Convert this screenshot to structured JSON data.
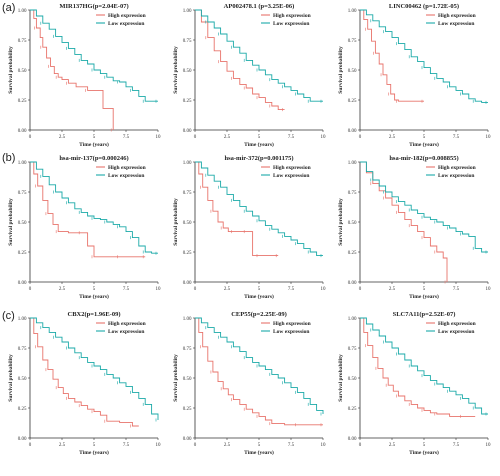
{
  "panel_letters": [
    "(a)",
    "(b)",
    "(c)"
  ],
  "colors": {
    "high": "#e8736b",
    "low": "#1aa9a8",
    "axis": "#333333"
  },
  "chart_data": [
    {
      "type": "line",
      "title": "MIR137HG(p=2.04E-07)",
      "xlabel": "Time  (years)",
      "ylabel": "Survival probability",
      "xlim": [
        0,
        10
      ],
      "ylim": [
        0,
        1
      ],
      "xticks": [
        "0",
        "2.5",
        "5",
        "7.5",
        "10"
      ],
      "yticks": [
        "0.00",
        "0.25",
        "0.50",
        "0.75",
        "1.00"
      ],
      "legend": "top-right",
      "grid": false,
      "series": [
        {
          "name": "High expression",
          "x": [
            0,
            0.3,
            0.5,
            0.8,
            1,
            1.3,
            1.6,
            1.9,
            2.2,
            2.5,
            3,
            3.6,
            4.5,
            5.7,
            6.5
          ],
          "y": [
            1,
            0.93,
            0.85,
            0.77,
            0.69,
            0.6,
            0.53,
            0.47,
            0.44,
            0.42,
            0.39,
            0.36,
            0.33,
            0.18,
            0
          ]
        },
        {
          "name": "Low expression",
          "x": [
            0,
            0.5,
            1,
            1.5,
            2,
            2.5,
            3,
            3.5,
            4,
            4.5,
            5,
            5.5,
            6,
            6.5,
            7,
            7.5,
            8,
            8.5,
            9,
            9.5,
            10
          ],
          "y": [
            1,
            0.95,
            0.89,
            0.84,
            0.78,
            0.73,
            0.68,
            0.63,
            0.58,
            0.55,
            0.5,
            0.47,
            0.44,
            0.41,
            0.4,
            0.36,
            0.33,
            0.28,
            0.24,
            0.24,
            0.24
          ]
        }
      ]
    },
    {
      "type": "line",
      "title": "AP002478.1 (p=3.25E-06)",
      "xlabel": "Time  (years)",
      "ylabel": "Survival probability",
      "xlim": [
        0,
        10
      ],
      "ylim": [
        0,
        1
      ],
      "xticks": [
        "0",
        "2.5",
        "5",
        "7.5",
        "10"
      ],
      "yticks": [
        "0.00",
        "0.25",
        "0.50",
        "0.75",
        "1.00"
      ],
      "legend": "top-right",
      "grid": false,
      "series": [
        {
          "name": "High expression",
          "x": [
            0,
            0.5,
            1,
            1.5,
            2,
            2.5,
            3,
            3.5,
            4,
            4.5,
            5,
            5.5,
            6,
            6.5,
            7
          ],
          "y": [
            1,
            0.9,
            0.77,
            0.66,
            0.57,
            0.49,
            0.43,
            0.38,
            0.35,
            0.3,
            0.27,
            0.23,
            0.2,
            0.17,
            0.17
          ]
        },
        {
          "name": "Low expression",
          "x": [
            0,
            0.5,
            1,
            1.5,
            2,
            2.5,
            3,
            3.5,
            4,
            4.5,
            5,
            5.5,
            6,
            6.5,
            7,
            7.5,
            8,
            8.5,
            9,
            9.5,
            10
          ],
          "y": [
            1,
            0.95,
            0.9,
            0.85,
            0.8,
            0.74,
            0.69,
            0.64,
            0.58,
            0.54,
            0.5,
            0.46,
            0.42,
            0.39,
            0.36,
            0.33,
            0.3,
            0.27,
            0.24,
            0.24,
            0.24
          ]
        }
      ]
    },
    {
      "type": "line",
      "title": "LINC00462 (p=1.72E-05)",
      "xlabel": "Time  (years)",
      "ylabel": "Survival probability",
      "xlim": [
        0,
        10
      ],
      "ylim": [
        0,
        1
      ],
      "xticks": [
        "0",
        "2.5",
        "5",
        "7.5",
        "10"
      ],
      "yticks": [
        "0.00",
        "0.25",
        "0.50",
        "0.75",
        "1.00"
      ],
      "legend": "top-right",
      "grid": false,
      "series": [
        {
          "name": "High expression",
          "x": [
            0,
            0.3,
            0.6,
            0.9,
            1.2,
            1.5,
            1.8,
            2.1,
            2.4,
            2.7,
            3,
            4,
            5
          ],
          "y": [
            1,
            0.92,
            0.84,
            0.74,
            0.64,
            0.55,
            0.46,
            0.38,
            0.3,
            0.25,
            0.24,
            0.24,
            0.24
          ]
        },
        {
          "name": "Low expression",
          "x": [
            0,
            0.5,
            1,
            1.5,
            2,
            2.5,
            3,
            3.5,
            4,
            4.5,
            5,
            5.5,
            6,
            6.5,
            7,
            7.5,
            8,
            8.5,
            9,
            9.5,
            10
          ],
          "y": [
            1,
            0.96,
            0.91,
            0.86,
            0.82,
            0.77,
            0.72,
            0.67,
            0.61,
            0.57,
            0.52,
            0.47,
            0.43,
            0.4,
            0.36,
            0.33,
            0.3,
            0.26,
            0.24,
            0.23,
            0.23
          ]
        }
      ]
    },
    {
      "type": "line",
      "title": "hsa-mir-137(p=0.000246)",
      "xlabel": "Time  (years)",
      "ylabel": "Survival probability",
      "xlim": [
        0,
        10
      ],
      "ylim": [
        0,
        1
      ],
      "xticks": [
        "0",
        "2.5",
        "5",
        "7.5",
        "10"
      ],
      "yticks": [
        "0.00",
        "0.25",
        "0.50",
        "0.75",
        "1.00"
      ],
      "legend": "top-right",
      "grid": false,
      "series": [
        {
          "name": "High expression",
          "x": [
            0,
            0.3,
            0.6,
            1,
            1.4,
            1.8,
            2.2,
            3,
            4,
            4.5,
            5,
            6,
            7,
            8,
            9
          ],
          "y": [
            1,
            0.9,
            0.8,
            0.68,
            0.57,
            0.48,
            0.42,
            0.41,
            0.41,
            0.3,
            0.21,
            0.21,
            0.21,
            0.21,
            0.21
          ]
        },
        {
          "name": "Low expression",
          "x": [
            0,
            0.5,
            1,
            1.5,
            2,
            2.5,
            3,
            3.5,
            4,
            4.5,
            5,
            5.5,
            6,
            6.5,
            7,
            7.5,
            8,
            8.5,
            9,
            9.5,
            10
          ],
          "y": [
            1,
            0.94,
            0.88,
            0.81,
            0.75,
            0.7,
            0.66,
            0.61,
            0.58,
            0.55,
            0.53,
            0.52,
            0.5,
            0.48,
            0.46,
            0.42,
            0.37,
            0.3,
            0.25,
            0.24,
            0.24
          ]
        }
      ]
    },
    {
      "type": "line",
      "title": "hsa-mir-372(p=0.001175)",
      "xlabel": "Time  (years)",
      "ylabel": "Survival probability",
      "xlim": [
        0,
        10
      ],
      "ylim": [
        0,
        1
      ],
      "xticks": [
        "0",
        "2.5",
        "5",
        "7.5",
        "10"
      ],
      "yticks": [
        "0.00",
        "0.25",
        "0.50",
        "0.75",
        "1.00"
      ],
      "legend": "top-right",
      "grid": false,
      "series": [
        {
          "name": "High expression",
          "x": [
            0,
            0.3,
            0.6,
            1,
            1.4,
            1.8,
            2.2,
            2.6,
            3,
            3.5,
            4,
            4.5,
            5,
            6,
            6.5
          ],
          "y": [
            1,
            0.9,
            0.79,
            0.68,
            0.59,
            0.5,
            0.45,
            0.42,
            0.42,
            0.42,
            0.42,
            0.22,
            0.22,
            0.22,
            0.22
          ]
        },
        {
          "name": "Low expression",
          "x": [
            0,
            0.5,
            1,
            1.5,
            2,
            2.5,
            3,
            3.5,
            4,
            4.5,
            5,
            5.5,
            6,
            6.5,
            7,
            7.5,
            8,
            8.5,
            9,
            9.5,
            10
          ],
          "y": [
            1,
            0.95,
            0.89,
            0.84,
            0.79,
            0.73,
            0.68,
            0.63,
            0.59,
            0.55,
            0.51,
            0.47,
            0.44,
            0.41,
            0.38,
            0.35,
            0.32,
            0.28,
            0.25,
            0.22,
            0.22
          ]
        }
      ]
    },
    {
      "type": "line",
      "title": "hsa-mir-182(p=0.008855)",
      "xlabel": "Time  (years)",
      "ylabel": "Survival probability",
      "xlim": [
        0,
        10
      ],
      "ylim": [
        0,
        1
      ],
      "xticks": [
        "0",
        "2.5",
        "5",
        "7.5",
        "10"
      ],
      "yticks": [
        "0.00",
        "0.25",
        "0.50",
        "0.75",
        "1.00"
      ],
      "legend": "top-right",
      "grid": false,
      "series": [
        {
          "name": "High expression",
          "x": [
            0,
            0.5,
            1,
            1.5,
            2,
            2.5,
            3,
            3.5,
            4,
            4.5,
            5,
            5.5,
            6,
            6.5,
            6.8
          ],
          "y": [
            1,
            0.91,
            0.82,
            0.76,
            0.7,
            0.64,
            0.58,
            0.52,
            0.47,
            0.42,
            0.37,
            0.3,
            0.25,
            0.2,
            0
          ]
        },
        {
          "name": "Low expression",
          "x": [
            0,
            0.5,
            1,
            1.5,
            2,
            2.5,
            3,
            3.5,
            4,
            4.5,
            5,
            5.5,
            6,
            6.5,
            7,
            7.5,
            8,
            8.5,
            9,
            9.5,
            10
          ],
          "y": [
            1,
            0.92,
            0.85,
            0.8,
            0.75,
            0.71,
            0.67,
            0.64,
            0.6,
            0.57,
            0.54,
            0.52,
            0.5,
            0.47,
            0.45,
            0.42,
            0.4,
            0.38,
            0.28,
            0.25,
            0.25
          ]
        }
      ]
    },
    {
      "type": "line",
      "title": "CBX2(p=1.96E-09)",
      "xlabel": "Time  (years)",
      "ylabel": "Survival probability",
      "xlim": [
        0,
        10
      ],
      "ylim": [
        0,
        1
      ],
      "xticks": [
        "0",
        "2.5",
        "5",
        "7.5",
        "10"
      ],
      "yticks": [
        "0.00",
        "0.25",
        "0.50",
        "0.75",
        "1.00"
      ],
      "legend": "top-right",
      "grid": false,
      "series": [
        {
          "name": "High expression",
          "x": [
            0,
            0.3,
            0.6,
            1,
            1.4,
            1.8,
            2.2,
            2.6,
            3,
            3.5,
            4,
            4.5,
            5,
            5.5,
            6,
            7,
            8,
            8.5
          ],
          "y": [
            1,
            0.87,
            0.76,
            0.65,
            0.57,
            0.49,
            0.42,
            0.37,
            0.33,
            0.3,
            0.27,
            0.24,
            0.22,
            0.19,
            0.14,
            0.13,
            0.1,
            0.1
          ]
        },
        {
          "name": "Low expression",
          "x": [
            0,
            0.5,
            1,
            1.5,
            2,
            2.5,
            3,
            3.5,
            4,
            4.5,
            5,
            5.5,
            6,
            6.5,
            7,
            7.5,
            8,
            8.5,
            9,
            9.5,
            10
          ],
          "y": [
            1,
            0.96,
            0.92,
            0.88,
            0.84,
            0.8,
            0.75,
            0.71,
            0.67,
            0.63,
            0.6,
            0.57,
            0.53,
            0.5,
            0.46,
            0.43,
            0.38,
            0.33,
            0.28,
            0.2,
            0.15
          ]
        }
      ]
    },
    {
      "type": "line",
      "title": "CEP55(p=2.25E-09)",
      "xlabel": "Time  (years)",
      "ylabel": "Survival probability",
      "xlim": [
        0,
        10
      ],
      "ylim": [
        0,
        1
      ],
      "xticks": [
        "0",
        "2.5",
        "5",
        "7.5",
        "10"
      ],
      "yticks": [
        "0.00",
        "0.25",
        "0.50",
        "0.75",
        "1.00"
      ],
      "legend": "top-right",
      "grid": false,
      "series": [
        {
          "name": "High expression",
          "x": [
            0,
            0.3,
            0.6,
            1,
            1.4,
            1.8,
            2.2,
            2.6,
            3,
            3.5,
            4,
            4.5,
            5,
            5.5,
            6,
            7,
            8,
            9,
            10
          ],
          "y": [
            1,
            0.88,
            0.76,
            0.64,
            0.55,
            0.47,
            0.41,
            0.36,
            0.32,
            0.28,
            0.24,
            0.21,
            0.18,
            0.15,
            0.12,
            0.11,
            0.11,
            0.11,
            0.11
          ]
        },
        {
          "name": "Low expression",
          "x": [
            0,
            0.5,
            1,
            1.5,
            2,
            2.5,
            3,
            3.5,
            4,
            4.5,
            5,
            5.5,
            6,
            6.5,
            7,
            7.5,
            8,
            8.5,
            9,
            9.5,
            10
          ],
          "y": [
            1,
            0.96,
            0.92,
            0.88,
            0.84,
            0.8,
            0.76,
            0.72,
            0.67,
            0.63,
            0.6,
            0.57,
            0.53,
            0.5,
            0.46,
            0.42,
            0.38,
            0.33,
            0.28,
            0.23,
            0.2
          ]
        }
      ]
    },
    {
      "type": "line",
      "title": "SLC7A11(p=2.52E-07)",
      "xlabel": "Time  (years)",
      "ylabel": "Survival probability",
      "xlim": [
        0,
        10
      ],
      "ylim": [
        0,
        1
      ],
      "xticks": [
        "0",
        "2.5",
        "5",
        "7.5",
        "10"
      ],
      "yticks": [
        "0.00",
        "0.25",
        "0.50",
        "0.75",
        "1.00"
      ],
      "legend": "top-right",
      "grid": false,
      "series": [
        {
          "name": "High expression",
          "x": [
            0,
            0.3,
            0.6,
            1,
            1.4,
            1.8,
            2.2,
            2.6,
            3,
            3.5,
            4,
            4.5,
            5,
            5.5,
            6,
            7,
            8,
            9
          ],
          "y": [
            1,
            0.88,
            0.77,
            0.67,
            0.58,
            0.5,
            0.44,
            0.39,
            0.35,
            0.31,
            0.28,
            0.25,
            0.23,
            0.21,
            0.2,
            0.18,
            0.18,
            0.18
          ]
        },
        {
          "name": "Low expression",
          "x": [
            0,
            0.5,
            1,
            1.5,
            2,
            2.5,
            3,
            3.5,
            4,
            4.5,
            5,
            5.5,
            6,
            6.5,
            7,
            7.5,
            8,
            8.5,
            9,
            9.5,
            10
          ],
          "y": [
            1,
            0.95,
            0.9,
            0.85,
            0.8,
            0.75,
            0.7,
            0.65,
            0.6,
            0.56,
            0.52,
            0.48,
            0.45,
            0.42,
            0.39,
            0.36,
            0.33,
            0.29,
            0.25,
            0.2,
            0.2
          ]
        }
      ]
    }
  ]
}
